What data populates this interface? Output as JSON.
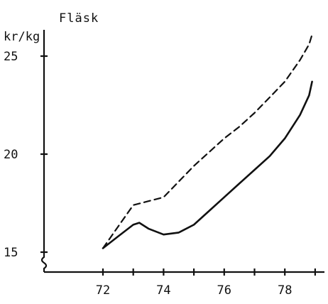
{
  "chart_data": {
    "type": "line",
    "title": "Fläsk",
    "ylabel": "kr/kg",
    "xlabel": "",
    "xlim": [
      70.3,
      80.0
    ],
    "ylim": [
      14.0,
      27.5
    ],
    "y_axis_break": true,
    "grid": false,
    "legend": "none",
    "x_ticks": [
      72,
      73,
      74,
      75,
      76,
      77,
      78,
      79
    ],
    "x_tick_labels": [
      {
        "value": 72,
        "label": "72"
      },
      {
        "value": 74,
        "label": "74"
      },
      {
        "value": 76,
        "label": "76"
      },
      {
        "value": 78,
        "label": "78"
      }
    ],
    "y_ticks": [
      {
        "value": 15,
        "label": "15"
      },
      {
        "value": 20,
        "label": "20"
      },
      {
        "value": 25,
        "label": "25"
      }
    ],
    "series": [
      {
        "style": "dashed",
        "color": "#111111",
        "points": [
          [
            72.0,
            15.2
          ],
          [
            72.5,
            16.3
          ],
          [
            73.0,
            17.4
          ],
          [
            73.5,
            17.6
          ],
          [
            74.0,
            17.8
          ],
          [
            74.5,
            18.6
          ],
          [
            75.0,
            19.4
          ],
          [
            75.5,
            20.1
          ],
          [
            76.0,
            20.8
          ],
          [
            76.5,
            21.4
          ],
          [
            77.0,
            22.1
          ],
          [
            77.5,
            22.9
          ],
          [
            78.0,
            23.7
          ],
          [
            78.5,
            24.8
          ],
          [
            78.8,
            25.6
          ],
          [
            78.9,
            26.1
          ]
        ]
      },
      {
        "style": "solid",
        "color": "#111111",
        "points": [
          [
            72.0,
            15.2
          ],
          [
            72.5,
            15.8
          ],
          [
            73.0,
            16.4
          ],
          [
            73.2,
            16.5
          ],
          [
            73.5,
            16.2
          ],
          [
            74.0,
            15.9
          ],
          [
            74.5,
            16.0
          ],
          [
            75.0,
            16.4
          ],
          [
            75.5,
            17.1
          ],
          [
            76.0,
            17.8
          ],
          [
            76.5,
            18.5
          ],
          [
            77.0,
            19.2
          ],
          [
            77.5,
            19.9
          ],
          [
            78.0,
            20.8
          ],
          [
            78.5,
            22.0
          ],
          [
            78.8,
            23.0
          ],
          [
            78.9,
            23.7
          ]
        ]
      }
    ]
  }
}
